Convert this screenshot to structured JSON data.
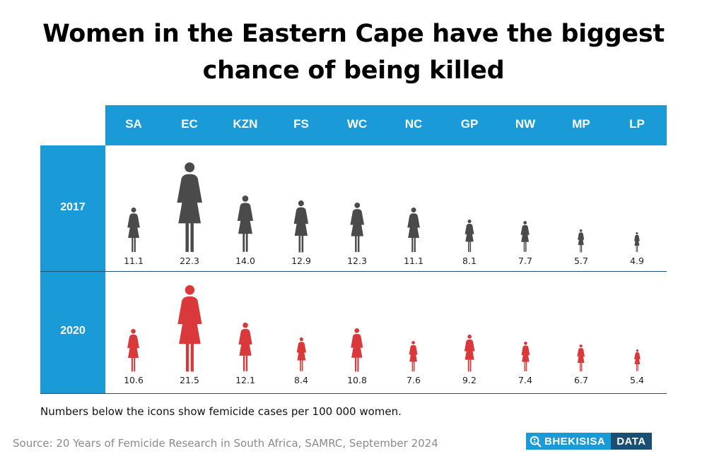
{
  "title_lines": [
    "Women in the Eastern Cape have the biggest",
    "chance of being killed"
  ],
  "note": "Numbers below the icons show femicide cases per 100 000 women.",
  "source": "Source: 20 Years of Femicide Research in South Africa, SAMRC, September 2024",
  "brand": {
    "left": "BHEKISISA",
    "right": "DATA",
    "icon": "magnifier-icon"
  },
  "colors": {
    "header": "#1a9bd7",
    "series_2017": "#4a4a4a",
    "series_2020": "#d9393a",
    "brand_dark": "#1b4f72"
  },
  "chart_data": {
    "type": "table",
    "categories": [
      "SA",
      "EC",
      "KZN",
      "FS",
      "WC",
      "NC",
      "GP",
      "NW",
      "MP",
      "LP"
    ],
    "series": [
      {
        "name": "2017",
        "values": [
          11.1,
          22.3,
          14.0,
          12.9,
          12.3,
          11.1,
          8.1,
          7.7,
          5.7,
          4.9
        ]
      },
      {
        "name": "2020",
        "values": [
          10.6,
          21.5,
          12.1,
          8.4,
          10.8,
          7.6,
          9.2,
          7.4,
          6.7,
          5.4
        ]
      }
    ],
    "value_labels": [
      [
        "11.1",
        "22.3",
        "14.0",
        "12.9",
        "12.3",
        "11.1",
        "8.1",
        "7.7",
        "5.7",
        "4.9"
      ],
      [
        "10.6",
        "21.5",
        "12.1",
        "8.4",
        "10.8",
        "7.6",
        "9.2",
        "7.4",
        "6.7",
        "5.4"
      ]
    ],
    "marker": "woman-icon",
    "unit": "femicide cases per 100 000 women"
  }
}
